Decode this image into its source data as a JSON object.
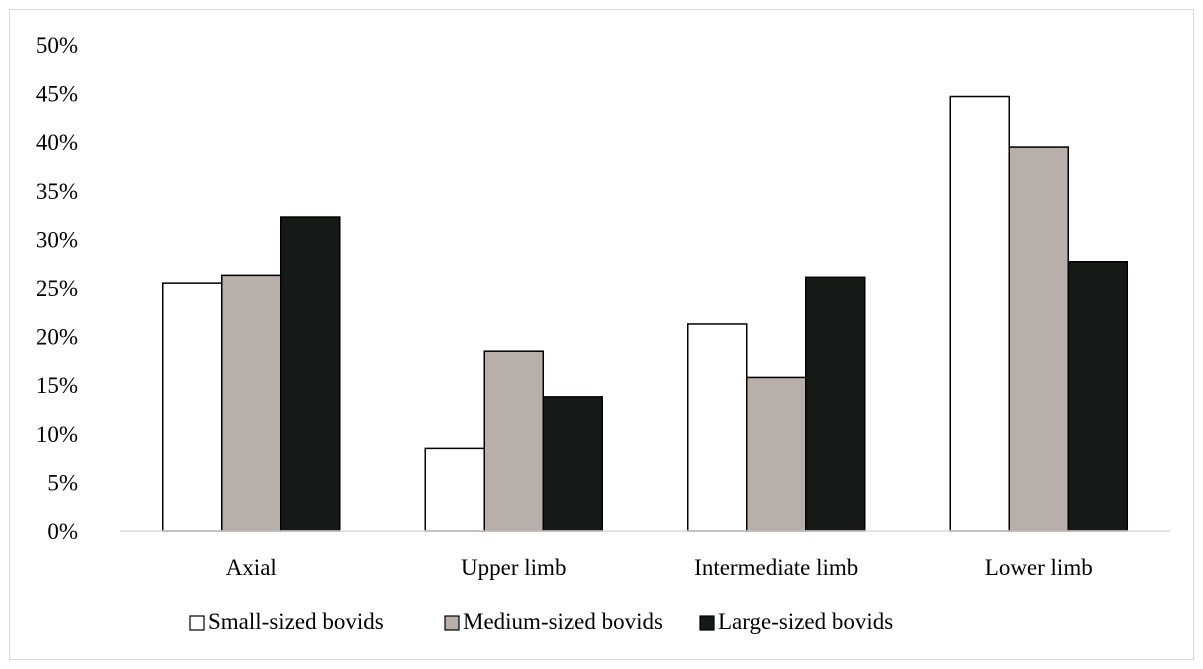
{
  "chart_data": {
    "type": "bar",
    "title": "",
    "xlabel": "",
    "ylabel": "",
    "categories": [
      "Axial",
      "Upper limb",
      "Intermediate limb",
      "Lower limb"
    ],
    "series": [
      {
        "name": "Small-sized bovids",
        "values": [
          25.5,
          8.5,
          21.3,
          44.7
        ],
        "color": "#ffffff"
      },
      {
        "name": "Medium-sized bovids",
        "values": [
          26.3,
          18.5,
          15.8,
          39.5
        ],
        "color": "#b8afab"
      },
      {
        "name": "Large-sized bovids",
        "values": [
          32.3,
          13.8,
          26.1,
          27.7
        ],
        "color": "#161a17"
      }
    ],
    "ylim": [
      0,
      50
    ],
    "yticks": [
      0,
      5,
      10,
      15,
      20,
      25,
      30,
      35,
      40,
      45,
      50
    ],
    "ytick_labels": [
      "0%",
      "5%",
      "10%",
      "15%",
      "20%",
      "25%",
      "30%",
      "35%",
      "40%",
      "45%",
      "50%"
    ],
    "grid": false,
    "legend_position": "bottom"
  }
}
